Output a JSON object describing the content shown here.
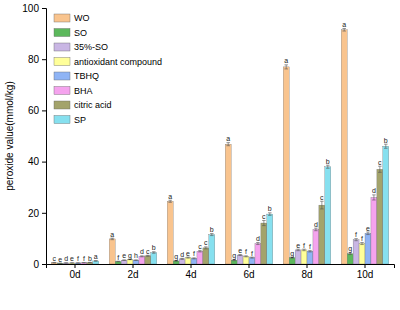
{
  "chart_data": {
    "type": "bar",
    "y_label": "peroxide value(mmol/kg)",
    "categories": [
      "0d",
      "2d",
      "4d",
      "6d",
      "8d",
      "10d"
    ],
    "ylim": [
      0,
      100
    ],
    "yticks": [
      0,
      20,
      40,
      60,
      80,
      100
    ],
    "grid": false,
    "legend": "upper-left",
    "series": [
      {
        "name": "WO",
        "color": "#f9c48e",
        "values": [
          0.5,
          9.8,
          24.5,
          46.8,
          77.0,
          91.5
        ],
        "errors": [
          0.1,
          0.3,
          0.4,
          0.6,
          0.8,
          0.5
        ],
        "significance": [
          "c",
          "a",
          "a",
          "a",
          "a",
          "a"
        ]
      },
      {
        "name": "SO",
        "color": "#5cb85c",
        "values": [
          0.3,
          1.0,
          1.2,
          1.5,
          2.5,
          4.0
        ],
        "errors": [
          0.05,
          0.1,
          0.1,
          0.2,
          0.2,
          0.3
        ],
        "significance": [
          "e",
          "f",
          "g",
          "g",
          "g",
          "g"
        ]
      },
      {
        "name": "35%-SO",
        "color": "#c9b6e4",
        "values": [
          0.4,
          1.5,
          2.0,
          3.5,
          5.5,
          9.5
        ],
        "errors": [
          0.05,
          0.1,
          0.2,
          0.2,
          0.3,
          0.4
        ],
        "significance": [
          "d",
          "e",
          "d",
          "e",
          "e",
          "f"
        ]
      },
      {
        "name": "antioxidant compound",
        "color": "#ffff99",
        "values": [
          0.4,
          1.8,
          2.5,
          3.0,
          5.5,
          8.0
        ],
        "errors": [
          0.05,
          0.1,
          0.2,
          0.2,
          0.3,
          0.4
        ],
        "significance": [
          "e",
          "g",
          "e",
          "f",
          "f",
          "f"
        ]
      },
      {
        "name": "TBHQ",
        "color": "#8fb4f5",
        "values": [
          0.4,
          1.5,
          2.2,
          2.5,
          5.0,
          12.0
        ],
        "errors": [
          0.05,
          0.1,
          0.2,
          0.2,
          0.3,
          0.5
        ],
        "significance": [
          "f",
          "h",
          "f",
          "f",
          "f",
          "e"
        ]
      },
      {
        "name": "BHA",
        "color": "#f5a3ee",
        "values": [
          0.5,
          3.0,
          5.0,
          8.0,
          13.5,
          26.0
        ],
        "errors": [
          0.05,
          0.2,
          0.3,
          0.4,
          0.5,
          1.0
        ],
        "significance": [
          "f",
          "d",
          "c",
          "d",
          "d",
          "d"
        ]
      },
      {
        "name": "citric acid",
        "color": "#a3a36b",
        "values": [
          0.6,
          3.2,
          6.3,
          16.0,
          23.0,
          37.0
        ],
        "errors": [
          0.05,
          0.2,
          0.4,
          1.0,
          1.5,
          1.2
        ],
        "significance": [
          "b",
          "c",
          "c",
          "c",
          "c",
          "c"
        ]
      },
      {
        "name": "SP",
        "color": "#86e0ef",
        "values": [
          1.2,
          4.5,
          11.5,
          19.5,
          38.0,
          46.0
        ],
        "errors": [
          0.1,
          0.3,
          0.4,
          0.5,
          0.6,
          0.8
        ],
        "significance": [
          "a",
          "b",
          "b",
          "b",
          "b",
          "b"
        ]
      }
    ]
  }
}
